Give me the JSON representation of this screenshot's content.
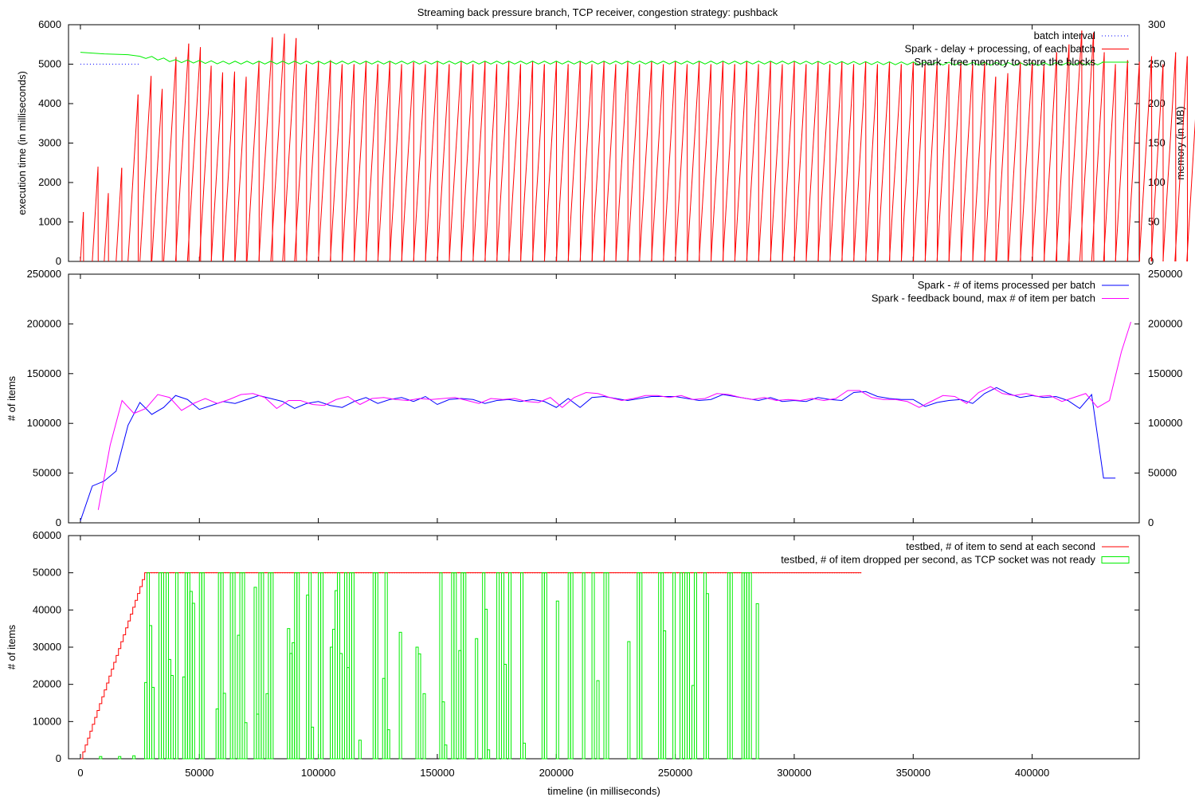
{
  "chart_data": [
    {
      "type": "line",
      "title": "Streaming back pressure branch, TCP receiver, congestion strategy: pushback",
      "ylabel": "execution time (in milliseconds)",
      "y2label": "memory (in MB)",
      "xlim": [
        -5000,
        445000
      ],
      "ylim": [
        0,
        6000
      ],
      "y2lim": [
        0,
        300
      ],
      "yticks": [
        "0",
        "1000",
        "2000",
        "3000",
        "4000",
        "5000",
        "6000"
      ],
      "y2ticks": [
        "0",
        "50",
        "100",
        "150",
        "200",
        "250",
        "300"
      ],
      "legend_position": "top-right",
      "series": [
        {
          "name": "batch interval",
          "color": "#0000ff",
          "style": "dotted",
          "x": [
            0,
            25000
          ],
          "y": [
            5000,
            5000
          ]
        },
        {
          "name": "Spark - delay + processing, of each batch",
          "color": "#ff0000",
          "style": "sawtooth",
          "batch_interval": 5000,
          "batch_peaks": [
            1250,
            2400,
            1730,
            2370,
            4230,
            4700,
            4370,
            5180,
            5520,
            5430,
            4960,
            4790,
            4810,
            4680,
            5060,
            5680,
            5770,
            5660,
            5000,
            5060,
            5100,
            5000,
            5000,
            5060,
            5000,
            5060,
            5000,
            5050,
            5000,
            5060,
            5000,
            5060,
            5000,
            5060,
            5000,
            5060,
            5000,
            5060,
            5000,
            5060,
            5000,
            5060,
            5000,
            5060,
            5000,
            5060,
            5000,
            5060,
            5000,
            5060,
            5000,
            5060,
            5000,
            5060,
            5000,
            5060,
            5000,
            5060,
            5000,
            5060,
            5000,
            5060,
            5000,
            5060,
            5000,
            5060,
            5000,
            5060,
            5000,
            5060,
            5000,
            5060,
            5000,
            5060,
            5000,
            5060,
            4680,
            4770,
            5060,
            5100,
            5000,
            5300,
            5500,
            5850,
            5800,
            5300,
            5000,
            5100,
            5060,
            5200,
            5000,
            5300,
            5200,
            3800,
            1120
          ]
        },
        {
          "name": "Spark - free memory to store the blocks",
          "color": "#00ee00",
          "axis": "y2",
          "x": [
            0,
            10000,
            20000,
            30000,
            40000,
            60000,
            100000,
            200000,
            300000,
            350000,
            400000,
            430000
          ],
          "y": [
            265,
            263,
            262,
            258,
            254,
            252,
            252,
            252,
            252,
            251,
            250,
            251
          ]
        }
      ]
    },
    {
      "type": "line",
      "ylabel": "# of items",
      "xlim": [
        -5000,
        445000
      ],
      "ylim": [
        0,
        250000
      ],
      "yticks": [
        "0",
        "50000",
        "100000",
        "150000",
        "200000",
        "250000"
      ],
      "y2ticks": [
        "0",
        "50000",
        "100000",
        "150000",
        "200000",
        "250000"
      ],
      "legend_position": "top-right",
      "series": [
        {
          "name": "Spark - # of items processed per batch",
          "color": "#0000ff",
          "x": [
            0,
            5000,
            10000,
            15000,
            20000,
            25000,
            30000,
            35000,
            40000,
            45000,
            50000,
            55000,
            60000,
            65000,
            70000,
            75000,
            80000,
            85000,
            90000,
            95000,
            100000,
            105000,
            110000,
            115000,
            120000,
            125000,
            130000,
            135000,
            140000,
            145000,
            150000,
            155000,
            160000,
            165000,
            170000,
            175000,
            180000,
            185000,
            190000,
            195000,
            200000,
            205000,
            210000,
            215000,
            220000,
            225000,
            230000,
            235000,
            240000,
            245000,
            250000,
            255000,
            260000,
            265000,
            270000,
            275000,
            280000,
            285000,
            290000,
            295000,
            300000,
            305000,
            310000,
            315000,
            320000,
            325000,
            330000,
            335000,
            340000,
            345000,
            350000,
            355000,
            360000,
            365000,
            370000,
            375000,
            380000,
            385000,
            390000,
            395000,
            400000,
            405000,
            410000,
            415000,
            420000,
            425000,
            430000,
            435000
          ],
          "y": [
            2000,
            37000,
            42000,
            52000,
            98000,
            121000,
            109000,
            116000,
            128000,
            124000,
            114000,
            118000,
            122000,
            120000,
            124000,
            128000,
            125000,
            122000,
            115000,
            120000,
            122000,
            118000,
            116000,
            122000,
            126000,
            120000,
            124000,
            126000,
            122000,
            127000,
            119000,
            124000,
            125000,
            124000,
            120000,
            123000,
            124000,
            122000,
            124000,
            122000,
            116000,
            125000,
            116000,
            126000,
            127000,
            125000,
            123000,
            125000,
            127000,
            127000,
            127000,
            125000,
            123000,
            124000,
            129000,
            127000,
            125000,
            123000,
            126000,
            122000,
            123000,
            122000,
            126000,
            124000,
            123000,
            131000,
            132000,
            127000,
            125000,
            124000,
            124000,
            117000,
            121000,
            123000,
            124000,
            120000,
            130000,
            136000,
            130000,
            126000,
            128000,
            126000,
            127000,
            123000,
            115000,
            129000,
            45000,
            45000
          ]
        },
        {
          "name": "Spark - feedback bound, max # of item per batch",
          "color": "#ff00ff",
          "x": [
            7500,
            12500,
            17500,
            22500,
            27500,
            32500,
            37500,
            42500,
            47500,
            52500,
            57500,
            62500,
            67500,
            72500,
            77500,
            82500,
            87500,
            92500,
            97500,
            102500,
            107500,
            112500,
            117500,
            122500,
            127500,
            132500,
            137500,
            142500,
            147500,
            152500,
            157500,
            162500,
            167500,
            172500,
            177500,
            182500,
            187500,
            192500,
            197500,
            202500,
            207500,
            212500,
            217500,
            222500,
            227500,
            232500,
            237500,
            242500,
            247500,
            252500,
            257500,
            262500,
            267500,
            272500,
            277500,
            282500,
            287500,
            292500,
            297500,
            302500,
            307500,
            312500,
            317500,
            322500,
            327500,
            332500,
            337500,
            342500,
            347500,
            352500,
            357500,
            362500,
            367500,
            372500,
            377500,
            382500,
            387500,
            392500,
            397500,
            402500,
            407500,
            412500,
            417500,
            422500,
            427500,
            432500,
            437500,
            441500
          ],
          "y": [
            13000,
            78000,
            123000,
            110000,
            115000,
            129000,
            126000,
            113000,
            120000,
            125000,
            120000,
            124000,
            129000,
            130000,
            126000,
            115000,
            123000,
            123000,
            119000,
            118000,
            124000,
            127000,
            119000,
            125000,
            126000,
            124000,
            123000,
            125000,
            124000,
            125000,
            126000,
            123000,
            120000,
            125000,
            124000,
            125000,
            122000,
            121000,
            126000,
            116000,
            126000,
            131000,
            130000,
            126000,
            123000,
            125000,
            128000,
            128000,
            126000,
            128000,
            124000,
            125000,
            130000,
            129000,
            126000,
            124000,
            126000,
            123000,
            124000,
            123000,
            125000,
            123000,
            125000,
            133000,
            133000,
            126000,
            124000,
            124000,
            122000,
            116000,
            122000,
            128000,
            127000,
            120000,
            131000,
            137000,
            130000,
            128000,
            130000,
            127000,
            128000,
            122000,
            126000,
            130000,
            116000,
            123000,
            172000,
            202000
          ]
        }
      ]
    },
    {
      "type": "line",
      "ylabel": "# of items",
      "xlabel": "timeline (in milliseconds)",
      "xlim": [
        -5000,
        445000
      ],
      "ylim": [
        0,
        60000
      ],
      "yticks": [
        "0",
        "10000",
        "20000",
        "30000",
        "40000",
        "50000",
        "60000"
      ],
      "xticks": [
        "0",
        "50000",
        "100000",
        "150000",
        "200000",
        "250000",
        "300000",
        "350000",
        "400000"
      ],
      "legend_position": "top-right",
      "series": [
        {
          "name": "testbed, # of item to send at each second",
          "color": "#ff0000",
          "style": "steps",
          "x": [
            0,
            27000,
            328000
          ],
          "y": [
            0,
            50000,
            50000
          ]
        },
        {
          "name": "testbed, # of item dropped per second, as TCP socket was not ready",
          "color": "#00ee00",
          "style": "impulse-boxes",
          "bin_ms": 1000,
          "values": [
            0,
            0,
            0,
            0,
            0,
            0,
            0,
            0,
            600,
            0,
            0,
            0,
            0,
            0,
            0,
            0,
            600,
            0,
            0,
            0,
            0,
            0,
            800,
            0,
            0,
            0,
            0,
            20500,
            50000,
            35800,
            19200,
            0,
            0,
            50000,
            50000,
            0,
            50000,
            26700,
            22400,
            0,
            50000,
            0,
            0,
            22000,
            50000,
            50000,
            45000,
            41800,
            0,
            0,
            50000,
            50000,
            0,
            0,
            0,
            0,
            0,
            13400,
            50000,
            50000,
            17600,
            0,
            0,
            50000,
            50000,
            0,
            33200,
            50000,
            50000,
            9700,
            0,
            0,
            0,
            46100,
            12000,
            50000,
            50000,
            0,
            17500,
            50000,
            50000,
            0,
            0,
            0,
            0,
            0,
            0,
            35000,
            28300,
            31200,
            50000,
            50000,
            0,
            0,
            0,
            44000,
            50000,
            8500,
            0,
            0,
            50000,
            50000,
            0,
            0,
            0,
            30000,
            34800,
            45200,
            50000,
            28300,
            0,
            50000,
            24500,
            50000,
            50000,
            0,
            0,
            5000,
            0,
            0,
            0,
            0,
            0,
            50000,
            50000,
            0,
            0,
            21600,
            50000,
            7800,
            0,
            0,
            0,
            0,
            34000,
            0,
            0,
            0,
            0,
            0,
            0,
            30000,
            28200,
            0,
            17500,
            0,
            0,
            0,
            0,
            0,
            0,
            50000,
            15300,
            3700,
            0,
            0,
            50000,
            50000,
            0,
            29100,
            50000,
            50000,
            0,
            0,
            0,
            0,
            32300,
            0,
            0,
            50000,
            40200,
            2400,
            0,
            0,
            0,
            50000,
            0,
            50000,
            25400,
            0,
            50000,
            0,
            0,
            0,
            0,
            50000,
            4200,
            0,
            0,
            0,
            0,
            0,
            0,
            0,
            50000,
            50000,
            0,
            0,
            0,
            0,
            42400,
            0,
            0,
            0,
            0,
            50000,
            50000,
            0,
            0,
            0,
            0,
            50000,
            0,
            0,
            0,
            50000,
            0,
            21000,
            0,
            0,
            50000,
            50000,
            0,
            0,
            0,
            0,
            0,
            0,
            0,
            0,
            31500,
            0,
            0,
            0,
            50000,
            50000,
            0,
            0,
            0,
            0,
            0,
            0,
            0,
            50000,
            50000,
            34400,
            0,
            0,
            0,
            50000,
            0,
            0,
            50000,
            0,
            50000,
            50000,
            0,
            19700,
            50000,
            0,
            0,
            0,
            50000,
            44400,
            0,
            0,
            0,
            0,
            0,
            0,
            0,
            0,
            50000,
            50000,
            0,
            0,
            0,
            0,
            50000,
            50000,
            50000,
            50000,
            0,
            0,
            41700,
            0,
            0,
            0,
            0,
            0,
            0,
            0,
            0,
            0,
            0,
            0,
            0,
            0,
            0,
            0,
            0,
            0,
            0,
            0,
            0,
            0,
            0,
            0,
            0,
            0,
            0,
            0,
            0,
            0,
            0,
            0,
            0,
            0,
            0,
            0,
            0,
            0,
            0,
            0,
            0,
            0,
            0,
            0,
            0
          ]
        }
      ]
    }
  ]
}
